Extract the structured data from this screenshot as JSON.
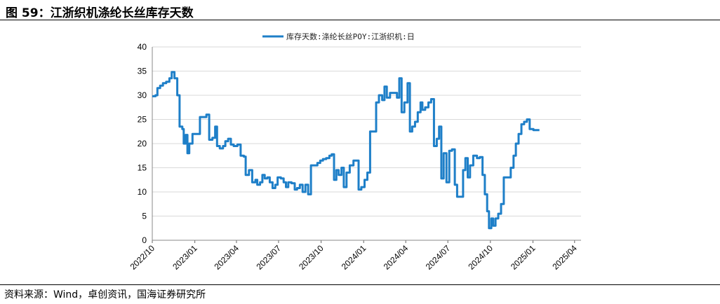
{
  "figure": {
    "title": "图 59：江浙织机涤纶长丝库存天数",
    "source": "资料来源：Wind，卓创资讯，国海证券研究所"
  },
  "chart_data": {
    "type": "line",
    "title": "",
    "xlabel": "",
    "ylabel": "",
    "ylim": [
      0,
      40
    ],
    "yticks": [
      0,
      5,
      10,
      15,
      20,
      25,
      30,
      35,
      40
    ],
    "x_range": [
      "2022-10-01",
      "2025-04-15"
    ],
    "xticks": [
      "2022/10",
      "2023/01",
      "2023/04",
      "2023/07",
      "2023/10",
      "2024/01",
      "2024/04",
      "2024/07",
      "2024/10",
      "2025/01",
      "2025/04"
    ],
    "grid": true,
    "legend_position": "top-center",
    "series": [
      {
        "name": "库存天数:涤纶长丝POY:江浙织机:日",
        "color": "#1e7fc8",
        "points": [
          [
            "2022-10-01",
            29.8
          ],
          [
            "2022-10-08",
            30.0
          ],
          [
            "2022-10-12",
            31.5
          ],
          [
            "2022-10-18",
            32.0
          ],
          [
            "2022-10-24",
            32.5
          ],
          [
            "2022-10-31",
            32.8
          ],
          [
            "2022-11-07",
            33.5
          ],
          [
            "2022-11-12",
            34.8
          ],
          [
            "2022-11-18",
            33.5
          ],
          [
            "2022-11-24",
            30.0
          ],
          [
            "2022-11-29",
            23.5
          ],
          [
            "2022-12-05",
            23.0
          ],
          [
            "2022-12-08",
            20.0
          ],
          [
            "2022-12-12",
            21.8
          ],
          [
            "2022-12-16",
            18.0
          ],
          [
            "2022-12-20",
            20.0
          ],
          [
            "2022-12-27",
            22.0
          ],
          [
            "2023-01-05",
            22.0
          ],
          [
            "2023-01-12",
            25.5
          ],
          [
            "2023-01-20",
            25.5
          ],
          [
            "2023-01-26",
            26.0
          ],
          [
            "2023-02-01",
            20.8
          ],
          [
            "2023-02-08",
            21.2
          ],
          [
            "2023-02-14",
            23.5
          ],
          [
            "2023-02-18",
            19.5
          ],
          [
            "2023-02-24",
            19.0
          ],
          [
            "2023-03-03",
            19.5
          ],
          [
            "2023-03-08",
            20.5
          ],
          [
            "2023-03-14",
            21.0
          ],
          [
            "2023-03-20",
            19.8
          ],
          [
            "2023-03-26",
            19.5
          ],
          [
            "2023-04-03",
            19.8
          ],
          [
            "2023-04-10",
            17.5
          ],
          [
            "2023-04-17",
            17.3
          ],
          [
            "2023-04-21",
            13.5
          ],
          [
            "2023-04-28",
            14.5
          ],
          [
            "2023-05-05",
            12.0
          ],
          [
            "2023-05-12",
            12.5
          ],
          [
            "2023-05-16",
            11.5
          ],
          [
            "2023-05-22",
            12.0
          ],
          [
            "2023-05-27",
            13.5
          ],
          [
            "2023-06-01",
            12.8
          ],
          [
            "2023-06-07",
            13.0
          ],
          [
            "2023-06-12",
            12.0
          ],
          [
            "2023-06-18",
            10.8
          ],
          [
            "2023-06-24",
            11.5
          ],
          [
            "2023-06-29",
            13.0
          ],
          [
            "2023-07-06",
            12.8
          ],
          [
            "2023-07-12",
            12.0
          ],
          [
            "2023-07-17",
            11.0
          ],
          [
            "2023-07-22",
            12.0
          ],
          [
            "2023-07-29",
            11.8
          ],
          [
            "2023-08-05",
            10.5
          ],
          [
            "2023-08-10",
            10.8
          ],
          [
            "2023-08-16",
            11.5
          ],
          [
            "2023-08-22",
            10.0
          ],
          [
            "2023-08-28",
            11.5
          ],
          [
            "2023-09-03",
            9.5
          ],
          [
            "2023-09-09",
            15.5
          ],
          [
            "2023-09-16",
            15.5
          ],
          [
            "2023-09-23",
            16.0
          ],
          [
            "2023-09-29",
            16.5
          ],
          [
            "2023-10-05",
            16.8
          ],
          [
            "2023-10-12",
            17.0
          ],
          [
            "2023-10-19",
            17.5
          ],
          [
            "2023-10-24",
            17.8
          ],
          [
            "2023-10-29",
            12.5
          ],
          [
            "2023-11-03",
            14.5
          ],
          [
            "2023-11-08",
            13.5
          ],
          [
            "2023-11-14",
            15.0
          ],
          [
            "2023-11-19",
            11.0
          ],
          [
            "2023-11-25",
            14.0
          ],
          [
            "2023-12-02",
            15.5
          ],
          [
            "2023-12-10",
            16.5
          ],
          [
            "2023-12-16",
            16.5
          ],
          [
            "2023-12-21",
            10.5
          ],
          [
            "2023-12-27",
            11.0
          ],
          [
            "2024-01-03",
            12.5
          ],
          [
            "2024-01-09",
            14.0
          ],
          [
            "2024-01-15",
            22.5
          ],
          [
            "2024-01-23",
            22.5
          ],
          [
            "2024-01-28",
            28.5
          ],
          [
            "2024-02-03",
            30.0
          ],
          [
            "2024-02-10",
            29.0
          ],
          [
            "2024-02-15",
            31.8
          ],
          [
            "2024-02-20",
            29.5
          ],
          [
            "2024-02-27",
            30.5
          ],
          [
            "2024-03-08",
            30.5
          ],
          [
            "2024-03-13",
            29.5
          ],
          [
            "2024-03-18",
            33.5
          ],
          [
            "2024-03-23",
            26.5
          ],
          [
            "2024-03-29",
            28.5
          ],
          [
            "2024-04-05",
            32.5
          ],
          [
            "2024-04-10",
            22.5
          ],
          [
            "2024-04-15",
            23.5
          ],
          [
            "2024-04-21",
            24.5
          ],
          [
            "2024-04-27",
            26.5
          ],
          [
            "2024-05-03",
            28.5
          ],
          [
            "2024-05-07",
            27.0
          ],
          [
            "2024-05-13",
            27.5
          ],
          [
            "2024-05-20",
            28.5
          ],
          [
            "2024-05-26",
            29.2
          ],
          [
            "2024-06-01",
            19.5
          ],
          [
            "2024-06-07",
            21.0
          ],
          [
            "2024-06-12",
            23.5
          ],
          [
            "2024-06-17",
            12.8
          ],
          [
            "2024-06-22",
            18.0
          ],
          [
            "2024-06-28",
            12.0
          ],
          [
            "2024-07-04",
            18.5
          ],
          [
            "2024-07-10",
            18.8
          ],
          [
            "2024-07-16",
            11.5
          ],
          [
            "2024-07-21",
            9.0
          ],
          [
            "2024-07-29",
            9.0
          ],
          [
            "2024-08-03",
            14.5
          ],
          [
            "2024-08-08",
            17.0
          ],
          [
            "2024-08-13",
            13.0
          ],
          [
            "2024-08-18",
            15.5
          ],
          [
            "2024-08-25",
            17.5
          ],
          [
            "2024-09-02",
            17.0
          ],
          [
            "2024-09-08",
            17.2
          ],
          [
            "2024-09-14",
            13.5
          ],
          [
            "2024-09-19",
            9.5
          ],
          [
            "2024-09-24",
            6.0
          ],
          [
            "2024-09-28",
            2.5
          ],
          [
            "2024-10-03",
            4.5
          ],
          [
            "2024-10-07",
            3.0
          ],
          [
            "2024-10-12",
            4.5
          ],
          [
            "2024-10-18",
            5.5
          ],
          [
            "2024-10-24",
            7.5
          ],
          [
            "2024-10-30",
            13.0
          ],
          [
            "2024-11-08",
            13.0
          ],
          [
            "2024-11-14",
            15.0
          ],
          [
            "2024-11-20",
            17.5
          ],
          [
            "2024-11-25",
            20.0
          ],
          [
            "2024-12-01",
            22.0
          ],
          [
            "2024-12-07",
            24.0
          ],
          [
            "2024-12-13",
            24.5
          ],
          [
            "2024-12-19",
            25.0
          ],
          [
            "2024-12-25",
            23.0
          ],
          [
            "2025-01-02",
            22.8
          ],
          [
            "2025-01-15",
            22.8
          ]
        ]
      }
    ]
  }
}
